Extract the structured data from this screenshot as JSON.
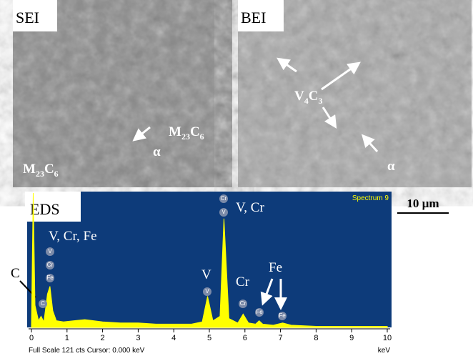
{
  "panels": {
    "sei": {
      "label": "SEI",
      "m_left": {
        "base": "M",
        "sub1": "23",
        "mid": "C",
        "sub2": "6"
      },
      "m_right": {
        "base": "M",
        "sub1": "23",
        "mid": "C",
        "sub2": "6"
      },
      "alpha": "α"
    },
    "bei": {
      "label": "BEI",
      "carbide": {
        "base": "V",
        "sub1": "4",
        "mid": "C",
        "sub2": "3"
      },
      "alpha": "α"
    },
    "scale_bar": "10 µm"
  },
  "eds": {
    "label": "EDS",
    "spectrum_name": "Spectrum 9",
    "footer": "Full Scale 121 cts  Cursor: 0.000 keV",
    "x_unit": "keV",
    "annotations": [
      "V, Cr, Fe",
      "C",
      "V",
      "V, Cr",
      "Cr",
      "Fe"
    ],
    "peak_markers": [
      "V",
      "Cr",
      "Fe",
      "C",
      "V",
      "Cr",
      "V",
      "Cr",
      "Fe",
      "Fe"
    ],
    "chart_data": {
      "type": "area",
      "color": "#ffff00",
      "x": [
        0,
        0.05,
        0.1,
        0.2,
        0.27,
        0.35,
        0.45,
        0.52,
        0.6,
        0.7,
        0.9,
        1.2,
        1.5,
        2,
        2.5,
        3,
        3.5,
        4,
        4.5,
        4.8,
        4.95,
        5.1,
        5.3,
        5.41,
        5.55,
        5.8,
        5.95,
        6.1,
        6.3,
        6.4,
        6.5,
        6.8,
        7.06,
        7.3,
        8,
        9,
        10
      ],
      "values": [
        2,
        121,
        20,
        6,
        10,
        5,
        30,
        37,
        15,
        6,
        5,
        6,
        7,
        5,
        4,
        4,
        3,
        3,
        3,
        5,
        28,
        6,
        10,
        98,
        8,
        4,
        12,
        4,
        3,
        6,
        3,
        2,
        4,
        2,
        1,
        1,
        1
      ],
      "xlim": [
        0,
        10
      ],
      "ylim": [
        0,
        121
      ],
      "xticks": [
        0,
        1,
        2,
        3,
        4,
        5,
        6,
        7,
        8,
        9,
        10
      ]
    }
  }
}
